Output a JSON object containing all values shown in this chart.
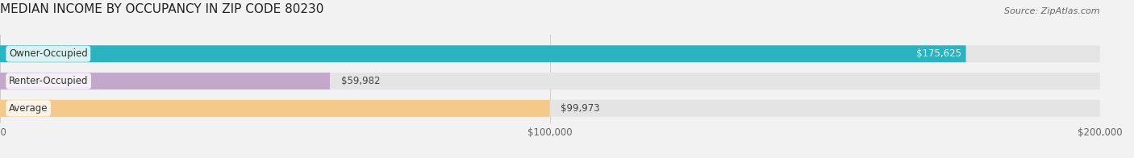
{
  "title": "MEDIAN INCOME BY OCCUPANCY IN ZIP CODE 80230",
  "source": "Source: ZipAtlas.com",
  "categories": [
    "Owner-Occupied",
    "Renter-Occupied",
    "Average"
  ],
  "values": [
    175625,
    59982,
    99973
  ],
  "bar_colors": [
    "#2ab3c0",
    "#c4a8cc",
    "#f5c98a"
  ],
  "value_labels": [
    "$175,625",
    "$59,982",
    "$99,973"
  ],
  "xlim": [
    0,
    200000
  ],
  "xtick_values": [
    0,
    100000,
    200000
  ],
  "xtick_labels": [
    "$0",
    "$100,000",
    "$200,000"
  ],
  "background_color": "#f2f2f2",
  "bar_bg_color": "#e4e4e4",
  "title_fontsize": 11,
  "source_fontsize": 8,
  "label_fontsize": 8.5,
  "value_fontsize": 8.5
}
